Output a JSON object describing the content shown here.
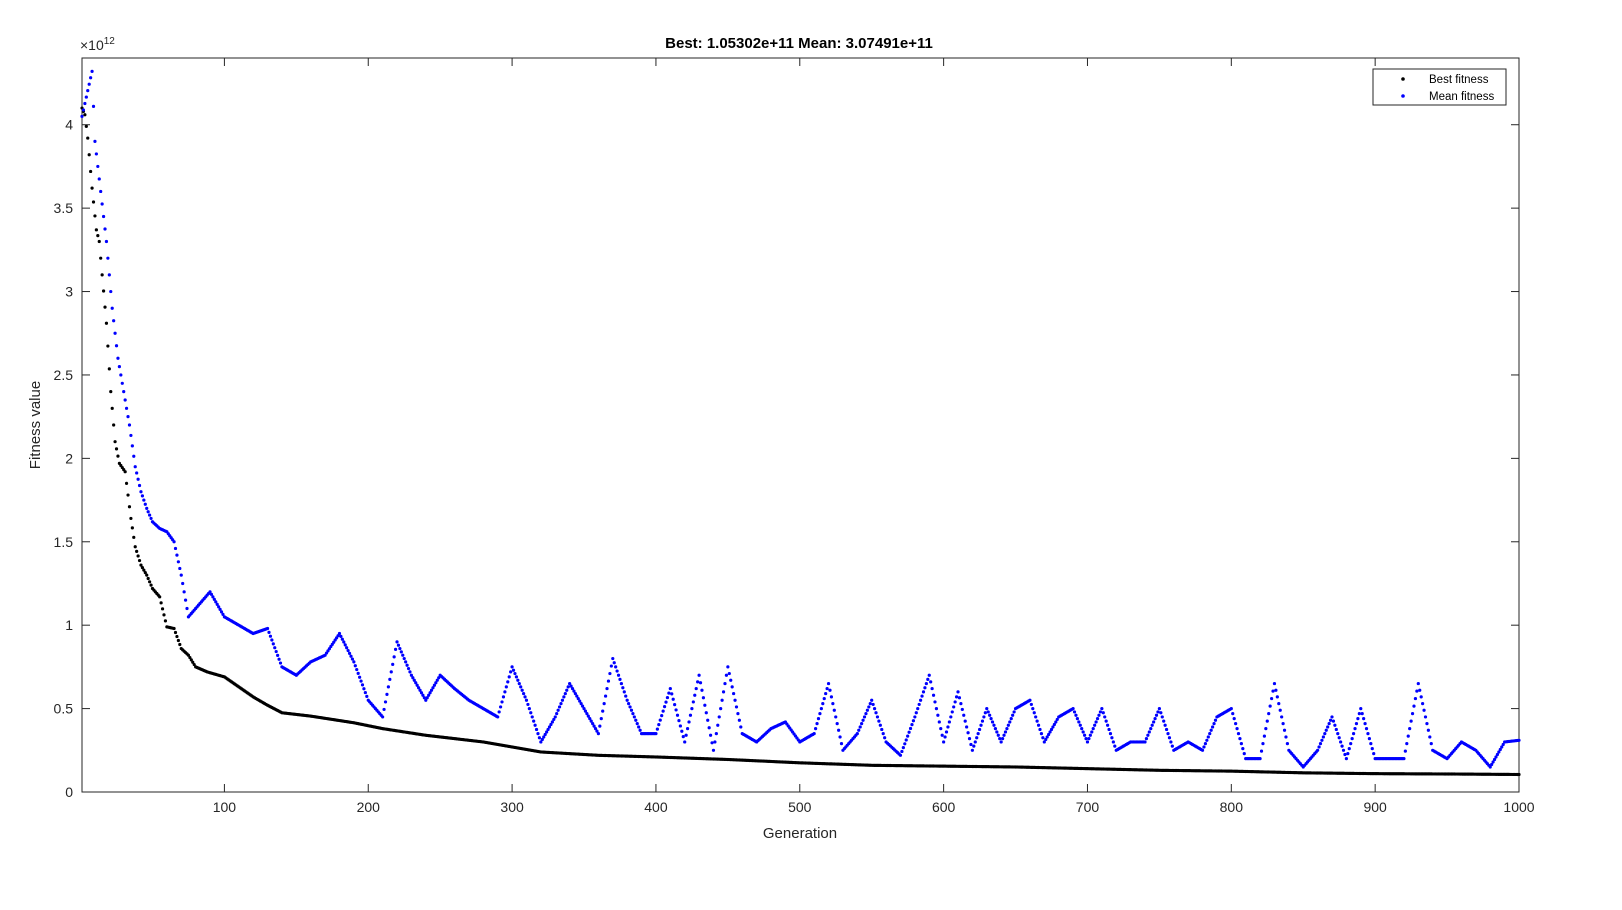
{
  "chart_data": {
    "type": "scatter",
    "title": "Best: 1.05302e+11 Mean: 3.07491e+11",
    "xlabel": "Generation",
    "ylabel": "Fitness value",
    "y_exponent_label": "×10",
    "y_exponent_power": "12",
    "xlim": [
      1,
      1000
    ],
    "ylim": [
      0,
      4.4
    ],
    "x_ticks": [
      100,
      200,
      300,
      400,
      500,
      600,
      700,
      800,
      900,
      1000
    ],
    "x_tick_labels": [
      "100",
      "200",
      "300",
      "400",
      "500",
      "600",
      "700",
      "800",
      "900",
      "1000"
    ],
    "y_ticks": [
      0,
      0.5,
      1,
      1.5,
      2,
      2.5,
      3,
      3.5,
      4
    ],
    "y_tick_labels": [
      "0",
      "0.5",
      "1",
      "1.5",
      "2",
      "2.5",
      "3",
      "3.5",
      "4"
    ],
    "grid": false,
    "legend_position": "top-right",
    "series": [
      {
        "name": "Best fitness",
        "color": "#000000",
        "anchors": [
          [
            1,
            4.1
          ],
          [
            3,
            4.06
          ],
          [
            5,
            3.92
          ],
          [
            8,
            3.62
          ],
          [
            11,
            3.37
          ],
          [
            13,
            3.3
          ],
          [
            15,
            3.1
          ],
          [
            18,
            2.81
          ],
          [
            21,
            2.4
          ],
          [
            24,
            2.1
          ],
          [
            27,
            1.97
          ],
          [
            31,
            1.92
          ],
          [
            35,
            1.64
          ],
          [
            38,
            1.47
          ],
          [
            42,
            1.36
          ],
          [
            46,
            1.3
          ],
          [
            50,
            1.22
          ],
          [
            55,
            1.17
          ],
          [
            60,
            0.99
          ],
          [
            65,
            0.98
          ],
          [
            70,
            0.86
          ],
          [
            75,
            0.82
          ],
          [
            80,
            0.75
          ],
          [
            88,
            0.72
          ],
          [
            100,
            0.69
          ],
          [
            110,
            0.63
          ],
          [
            120,
            0.57
          ],
          [
            130,
            0.52
          ],
          [
            140,
            0.475
          ],
          [
            160,
            0.455
          ],
          [
            190,
            0.415
          ],
          [
            210,
            0.38
          ],
          [
            240,
            0.34
          ],
          [
            280,
            0.3
          ],
          [
            320,
            0.24
          ],
          [
            360,
            0.22
          ],
          [
            400,
            0.21
          ],
          [
            450,
            0.195
          ],
          [
            500,
            0.175
          ],
          [
            550,
            0.16
          ],
          [
            600,
            0.155
          ],
          [
            650,
            0.15
          ],
          [
            700,
            0.14
          ],
          [
            750,
            0.13
          ],
          [
            800,
            0.125
          ],
          [
            850,
            0.115
          ],
          [
            900,
            0.11
          ],
          [
            950,
            0.108
          ],
          [
            1000,
            0.105
          ]
        ]
      },
      {
        "name": "Mean fitness",
        "color": "#0000ff",
        "anchors": [
          [
            1,
            4.05
          ],
          [
            8,
            4.32
          ],
          [
            10,
            3.9
          ],
          [
            14,
            3.6
          ],
          [
            18,
            3.3
          ],
          [
            22,
            2.9
          ],
          [
            26,
            2.6
          ],
          [
            30,
            2.4
          ],
          [
            34,
            2.2
          ],
          [
            38,
            1.95
          ],
          [
            42,
            1.8
          ],
          [
            46,
            1.7
          ],
          [
            50,
            1.62
          ],
          [
            55,
            1.58
          ],
          [
            60,
            1.56
          ],
          [
            65,
            1.5
          ],
          [
            70,
            1.3
          ],
          [
            75,
            1.05
          ],
          [
            80,
            1.1
          ],
          [
            90,
            1.2
          ],
          [
            100,
            1.05
          ],
          [
            110,
            1.0
          ],
          [
            120,
            0.95
          ],
          [
            130,
            0.98
          ],
          [
            140,
            0.75
          ],
          [
            150,
            0.7
          ],
          [
            160,
            0.78
          ],
          [
            170,
            0.82
          ],
          [
            180,
            0.95
          ],
          [
            190,
            0.78
          ],
          [
            200,
            0.55
          ],
          [
            210,
            0.45
          ],
          [
            220,
            0.9
          ],
          [
            230,
            0.7
          ],
          [
            240,
            0.55
          ],
          [
            250,
            0.7
          ],
          [
            260,
            0.62
          ],
          [
            270,
            0.55
          ],
          [
            280,
            0.5
          ],
          [
            290,
            0.45
          ],
          [
            300,
            0.75
          ],
          [
            310,
            0.55
          ],
          [
            320,
            0.3
          ],
          [
            330,
            0.45
          ],
          [
            340,
            0.65
          ],
          [
            350,
            0.5
          ],
          [
            360,
            0.35
          ],
          [
            370,
            0.8
          ],
          [
            380,
            0.55
          ],
          [
            390,
            0.35
          ],
          [
            400,
            0.35
          ],
          [
            410,
            0.62
          ],
          [
            420,
            0.3
          ],
          [
            430,
            0.7
          ],
          [
            440,
            0.25
          ],
          [
            450,
            0.75
          ],
          [
            460,
            0.35
          ],
          [
            470,
            0.3
          ],
          [
            480,
            0.38
          ],
          [
            490,
            0.42
          ],
          [
            500,
            0.3
          ],
          [
            510,
            0.35
          ],
          [
            520,
            0.65
          ],
          [
            530,
            0.25
          ],
          [
            540,
            0.35
          ],
          [
            550,
            0.55
          ],
          [
            560,
            0.3
          ],
          [
            570,
            0.22
          ],
          [
            580,
            0.45
          ],
          [
            590,
            0.7
          ],
          [
            600,
            0.3
          ],
          [
            610,
            0.6
          ],
          [
            620,
            0.25
          ],
          [
            630,
            0.5
          ],
          [
            640,
            0.3
          ],
          [
            650,
            0.5
          ],
          [
            660,
            0.55
          ],
          [
            670,
            0.3
          ],
          [
            680,
            0.45
          ],
          [
            690,
            0.5
          ],
          [
            700,
            0.3
          ],
          [
            710,
            0.5
          ],
          [
            720,
            0.25
          ],
          [
            730,
            0.3
          ],
          [
            740,
            0.3
          ],
          [
            750,
            0.5
          ],
          [
            760,
            0.25
          ],
          [
            770,
            0.3
          ],
          [
            780,
            0.25
          ],
          [
            790,
            0.45
          ],
          [
            800,
            0.5
          ],
          [
            810,
            0.2
          ],
          [
            820,
            0.2
          ],
          [
            830,
            0.65
          ],
          [
            840,
            0.25
          ],
          [
            850,
            0.15
          ],
          [
            860,
            0.25
          ],
          [
            870,
            0.45
          ],
          [
            880,
            0.2
          ],
          [
            890,
            0.5
          ],
          [
            900,
            0.2
          ],
          [
            910,
            0.2
          ],
          [
            920,
            0.2
          ],
          [
            930,
            0.65
          ],
          [
            940,
            0.25
          ],
          [
            950,
            0.2
          ],
          [
            960,
            0.3
          ],
          [
            970,
            0.25
          ],
          [
            980,
            0.15
          ],
          [
            990,
            0.3
          ],
          [
            1000,
            0.31
          ]
        ]
      }
    ]
  }
}
